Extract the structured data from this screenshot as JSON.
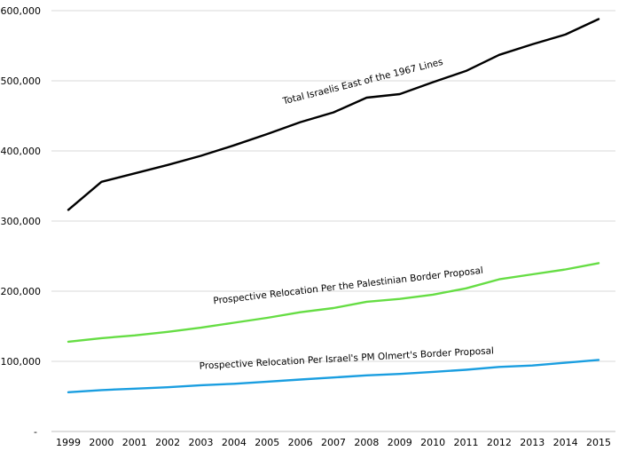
{
  "chart_data": {
    "type": "line",
    "title": "",
    "xlabel": "",
    "ylabel": "",
    "ylim": [
      0,
      600000
    ],
    "grid": true,
    "legend": "inline labels",
    "x": [
      "1999",
      "2000",
      "2001",
      "2002",
      "2003",
      "2004",
      "2005",
      "2006",
      "2007",
      "2008",
      "2009",
      "2010",
      "2011",
      "2012",
      "2013",
      "2014",
      "2015"
    ],
    "y_ticks": [
      {
        "value": 0,
        "label": "-"
      },
      {
        "value": 100000,
        "label": "100,000"
      },
      {
        "value": 200000,
        "label": "200,000"
      },
      {
        "value": 300000,
        "label": "300,000"
      },
      {
        "value": 400000,
        "label": "400,000"
      },
      {
        "value": 500000,
        "label": "500,000"
      },
      {
        "value": 600000,
        "label": "600,000"
      }
    ],
    "series": [
      {
        "name": "Total Israelis East of the 1967 Lines",
        "color": "#000000",
        "values": [
          316000,
          356000,
          368000,
          380000,
          393000,
          408000,
          424000,
          441000,
          455000,
          476000,
          481000,
          498000,
          514000,
          537000,
          552000,
          566000,
          588000
        ]
      },
      {
        "name": "Prospective Relocation Per the Palestinian Border Proposal",
        "color": "#66dd44",
        "values": [
          128000,
          133000,
          137000,
          142000,
          148000,
          155000,
          162000,
          170000,
          176000,
          185000,
          189000,
          195000,
          204000,
          217000,
          224000,
          231000,
          240000
        ]
      },
      {
        "name": "Prospective Relocation Per Israel's PM Olmert's Border Proposal",
        "color": "#1a9ee0",
        "values": [
          56000,
          59000,
          61000,
          63000,
          66000,
          68000,
          71000,
          74000,
          77000,
          80000,
          82000,
          85000,
          88000,
          92000,
          94000,
          98000,
          102000
        ]
      }
    ]
  }
}
